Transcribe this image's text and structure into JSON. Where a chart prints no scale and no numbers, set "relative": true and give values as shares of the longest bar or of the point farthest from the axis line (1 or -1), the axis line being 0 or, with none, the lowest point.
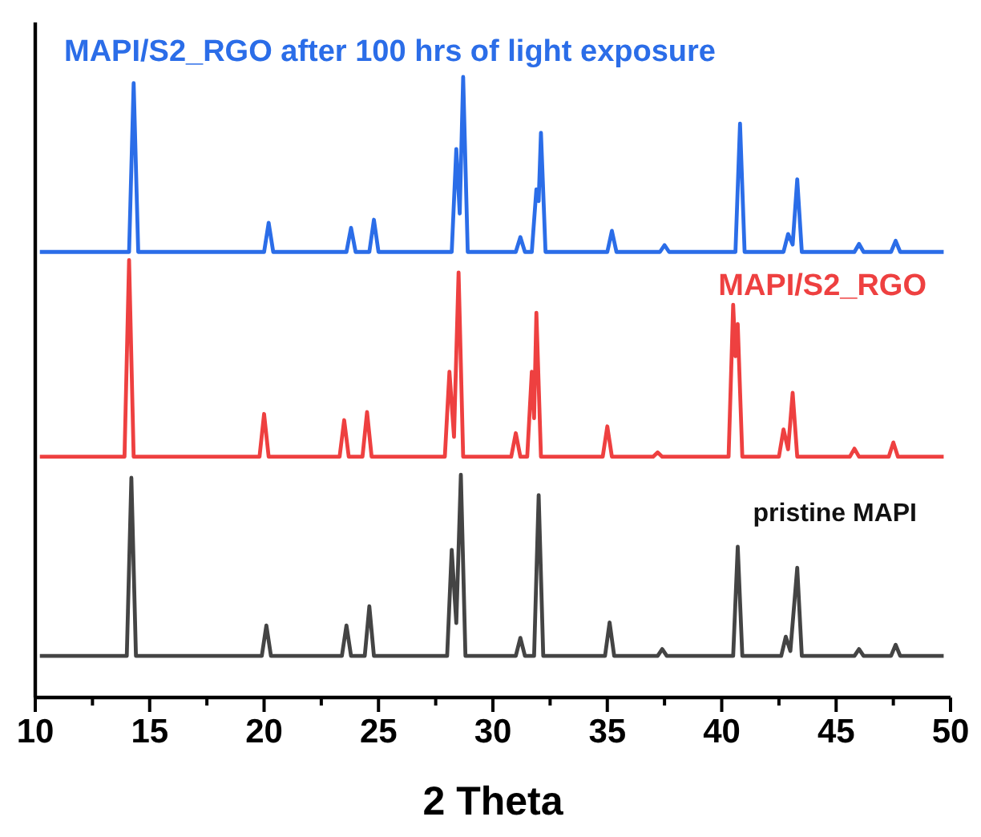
{
  "chart_data": {
    "type": "line",
    "relative": true,
    "xlabel": "2 Theta",
    "xlim": [
      10,
      50
    ],
    "xticks": [
      10,
      {
        "value": 12.5,
        "label": null
      },
      15,
      {
        "value": 17.5,
        "label": null
      },
      20,
      {
        "value": 22.5,
        "label": null
      },
      25,
      {
        "value": 27.5,
        "label": null
      },
      30,
      {
        "value": 32.5,
        "label": null
      },
      35,
      {
        "value": 37.5,
        "label": null
      },
      40,
      {
        "value": 42.5,
        "label": null
      },
      45,
      {
        "value": 47.5,
        "label": null
      },
      50
    ],
    "legend": false,
    "marker": "none",
    "line_style": "solid",
    "series": [
      {
        "name": "MAPI/S2_RGO after 100 hrs of light exposure",
        "color": "#2b6de8",
        "x": [
          10.2,
          14.1,
          14.3,
          14.5,
          20.0,
          20.2,
          20.4,
          23.6,
          23.8,
          24.0,
          24.6,
          24.8,
          25.0,
          28.2,
          28.4,
          28.55,
          28.7,
          28.9,
          31.0,
          31.2,
          31.4,
          31.7,
          31.9,
          32.0,
          32.1,
          32.3,
          35.0,
          35.2,
          35.4,
          37.3,
          37.5,
          37.7,
          40.6,
          40.8,
          41.0,
          42.7,
          42.9,
          43.1,
          43.3,
          43.5,
          45.8,
          46.0,
          46.2,
          47.4,
          47.6,
          47.8,
          49.7
        ],
        "values": [
          0.718,
          0.718,
          0.99,
          0.718,
          0.718,
          0.765,
          0.718,
          0.718,
          0.757,
          0.718,
          0.718,
          0.77,
          0.718,
          0.718,
          0.884,
          0.78,
          1,
          0.718,
          0.718,
          0.742,
          0.718,
          0.718,
          0.819,
          0.8,
          0.91,
          0.718,
          0.718,
          0.752,
          0.718,
          0.718,
          0.729,
          0.718,
          0.718,
          0.925,
          0.718,
          0.718,
          0.747,
          0.73,
          0.835,
          0.718,
          0.718,
          0.731,
          0.718,
          0.718,
          0.736,
          0.718,
          0.718
        ]
      },
      {
        "name": "MAPI/S2_RGO",
        "color": "#ee4040",
        "x": [
          10.2,
          13.9,
          14.1,
          14.3,
          19.8,
          20.0,
          20.2,
          23.3,
          23.5,
          23.7,
          24.3,
          24.5,
          24.7,
          27.9,
          28.1,
          28.3,
          28.5,
          28.7,
          30.8,
          31.0,
          31.2,
          31.5,
          31.7,
          31.8,
          31.9,
          32.1,
          34.8,
          35.0,
          35.2,
          37.0,
          37.2,
          37.4,
          40.3,
          40.5,
          40.6,
          40.7,
          40.9,
          42.5,
          42.7,
          42.9,
          43.1,
          43.3,
          45.6,
          45.8,
          46.0,
          47.3,
          47.5,
          47.7,
          49.7
        ],
        "values": [
          0.388,
          0.388,
          0.705,
          0.388,
          0.388,
          0.457,
          0.388,
          0.388,
          0.447,
          0.388,
          0.388,
          0.46,
          0.388,
          0.388,
          0.525,
          0.42,
          0.685,
          0.388,
          0.388,
          0.426,
          0.388,
          0.388,
          0.525,
          0.45,
          0.62,
          0.388,
          0.388,
          0.437,
          0.388,
          0.388,
          0.395,
          0.388,
          0.388,
          0.633,
          0.55,
          0.602,
          0.388,
          0.388,
          0.432,
          0.4,
          0.491,
          0.388,
          0.388,
          0.401,
          0.388,
          0.388,
          0.411,
          0.388,
          0.388
        ]
      },
      {
        "name": "pristine MAPI",
        "color": "#444444",
        "x": [
          10.2,
          14.0,
          14.2,
          14.4,
          19.9,
          20.1,
          20.3,
          23.4,
          23.6,
          23.8,
          24.4,
          24.6,
          24.8,
          28.0,
          28.2,
          28.4,
          28.6,
          28.8,
          31.0,
          31.2,
          31.4,
          31.8,
          32.0,
          32.2,
          34.9,
          35.1,
          35.3,
          37.2,
          37.4,
          37.6,
          40.5,
          40.7,
          40.9,
          42.6,
          42.8,
          43.0,
          43.3,
          43.5,
          45.8,
          46.0,
          46.2,
          47.4,
          47.6,
          47.8,
          49.7
        ],
        "values": [
          0.067,
          0.067,
          0.354,
          0.067,
          0.067,
          0.116,
          0.067,
          0.067,
          0.116,
          0.067,
          0.067,
          0.147,
          0.067,
          0.067,
          0.238,
          0.12,
          0.359,
          0.067,
          0.067,
          0.096,
          0.067,
          0.067,
          0.326,
          0.067,
          0.067,
          0.121,
          0.067,
          0.067,
          0.078,
          0.067,
          0.067,
          0.243,
          0.067,
          0.067,
          0.098,
          0.075,
          0.209,
          0.067,
          0.067,
          0.078,
          0.067,
          0.067,
          0.085,
          0.067,
          0.067
        ]
      }
    ]
  }
}
